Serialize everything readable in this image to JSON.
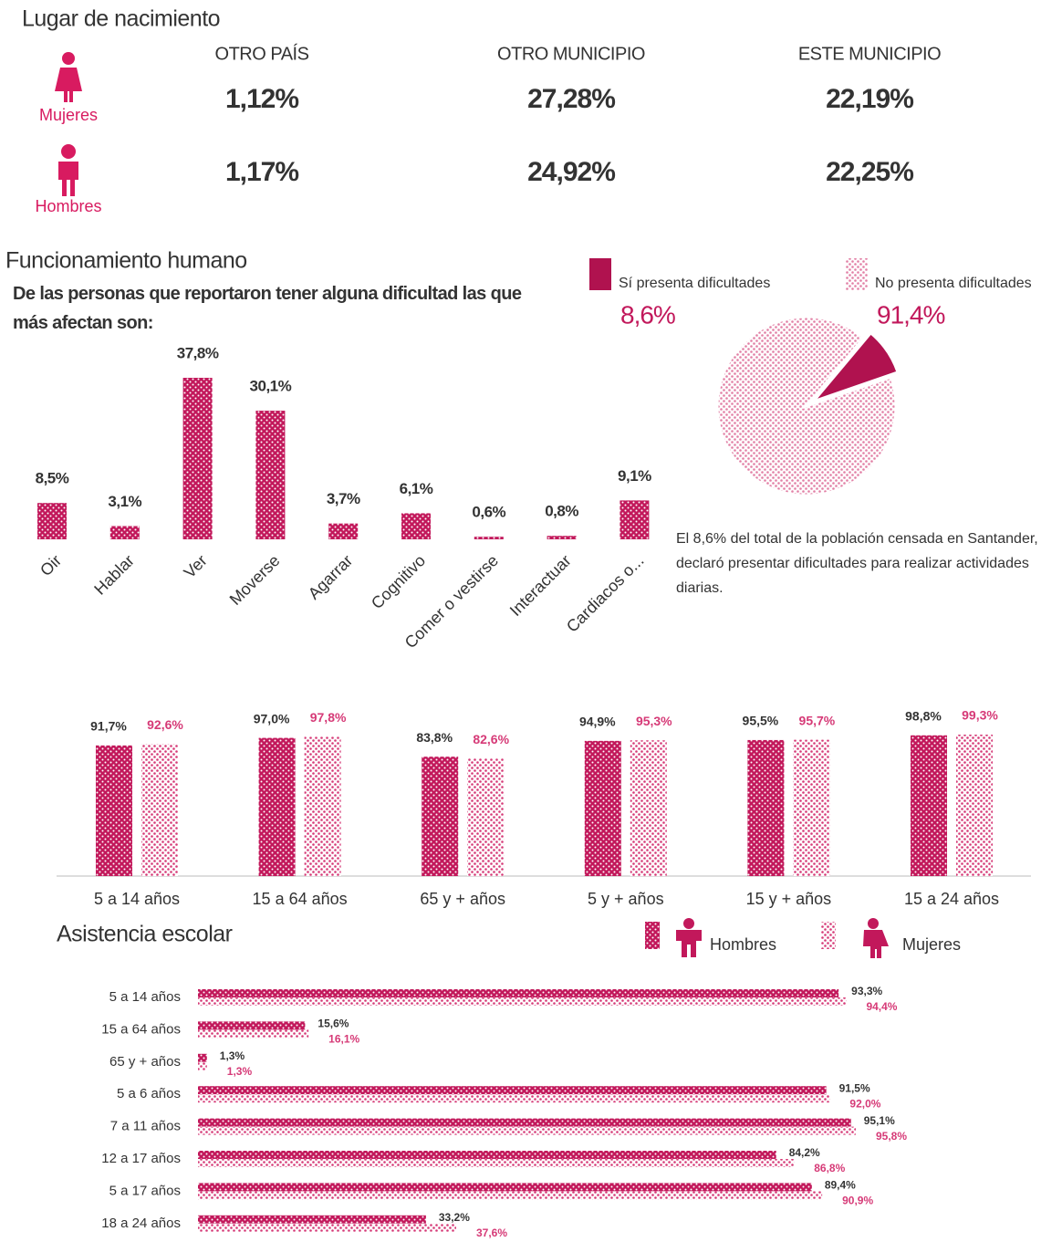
{
  "birthplace": {
    "title": "Lugar de nacimiento",
    "columns": [
      "OTRO PAÍS",
      "OTRO MUNICIPIO",
      "ESTE MUNICIPIO"
    ],
    "rows": [
      {
        "label": "Mujeres",
        "values": [
          "1,12%",
          "27,28%",
          "22,19%"
        ]
      },
      {
        "label": "Hombres",
        "values": [
          "1,17%",
          "24,92%",
          "22,25%"
        ]
      }
    ]
  },
  "chart_data": [
    {
      "type": "bar",
      "title": "Funcionamiento humano",
      "subtitle": "De las personas que reportaron tener alguna dificultad las que más afectan son:",
      "categories": [
        "Oir",
        "Hablar",
        "Ver",
        "Moverse",
        "Agarrar",
        "Cognitivo",
        "Comer o vestirse",
        "Interactuar",
        "Cardiacos o..."
      ],
      "values": [
        8.5,
        3.1,
        37.8,
        30.1,
        3.7,
        6.1,
        0.6,
        0.8,
        9.1
      ],
      "value_labels": [
        "8,5%",
        "3,1%",
        "37,8%",
        "30,1%",
        "3,7%",
        "6,1%",
        "0,6%",
        "0,8%",
        "9,1%"
      ],
      "color": "#c2185b"
    },
    {
      "type": "pie",
      "categories": [
        "Sí presenta dificultades",
        "No presenta dificultades"
      ],
      "values": [
        8.6,
        91.4
      ],
      "value_labels": [
        "8,6%",
        "91,4%"
      ],
      "colors": [
        "#b0124f",
        "#e27fa5"
      ],
      "annotation": "El 8,6%  del total de la población censada en Santander, declaró presentar dificultades para realizar actividades diarias."
    },
    {
      "type": "grouped_bar",
      "categories": [
        "5 a 14 años",
        "15 a 64 años",
        "65 y + años",
        "5 y + años",
        "15 y + años",
        "15 a 24 años"
      ],
      "series": [
        {
          "color": "#c2185b",
          "values": [
            91.7,
            97.0,
            83.8,
            94.9,
            95.5,
            98.8
          ],
          "value_labels": [
            "91,7%",
            "97,0%",
            "83,8%",
            "94,9%",
            "95,5%",
            "98,8%"
          ]
        },
        {
          "color": "#d63a77",
          "values": [
            92.6,
            97.8,
            82.6,
            95.3,
            95.7,
            99.3
          ],
          "value_labels": [
            "92,6%",
            "97,8%",
            "82,6%",
            "95,3%",
            "95,7%",
            "99,3%"
          ]
        }
      ]
    },
    {
      "type": "grouped_hbar",
      "title": "Asistencia escolar",
      "categories": [
        "5 a 14 años",
        "15 a 64 años",
        "65 y + años",
        "5 a 6 años",
        "7 a 11 años",
        "12 a 17 años",
        "5 a 17 años",
        "18 a 24 años"
      ],
      "series": [
        {
          "name": "Hombres",
          "color": "#c2185b",
          "values": [
            93.3,
            15.6,
            1.3,
            91.5,
            95.1,
            84.2,
            89.4,
            33.2
          ],
          "value_labels": [
            "93,3%",
            "15,6%",
            "1,3%",
            "91,5%",
            "95,1%",
            "84,2%",
            "89,4%",
            "33,2%"
          ]
        },
        {
          "name": "Mujeres",
          "color": "#d63a77",
          "values": [
            94.4,
            16.1,
            1.3,
            92.0,
            95.8,
            86.8,
            90.9,
            37.6
          ],
          "value_labels": [
            "94,4%",
            "16,1%",
            "1,3%",
            "92,0%",
            "95,8%",
            "86,8%",
            "90,9%",
            "37,6%"
          ]
        }
      ]
    }
  ]
}
